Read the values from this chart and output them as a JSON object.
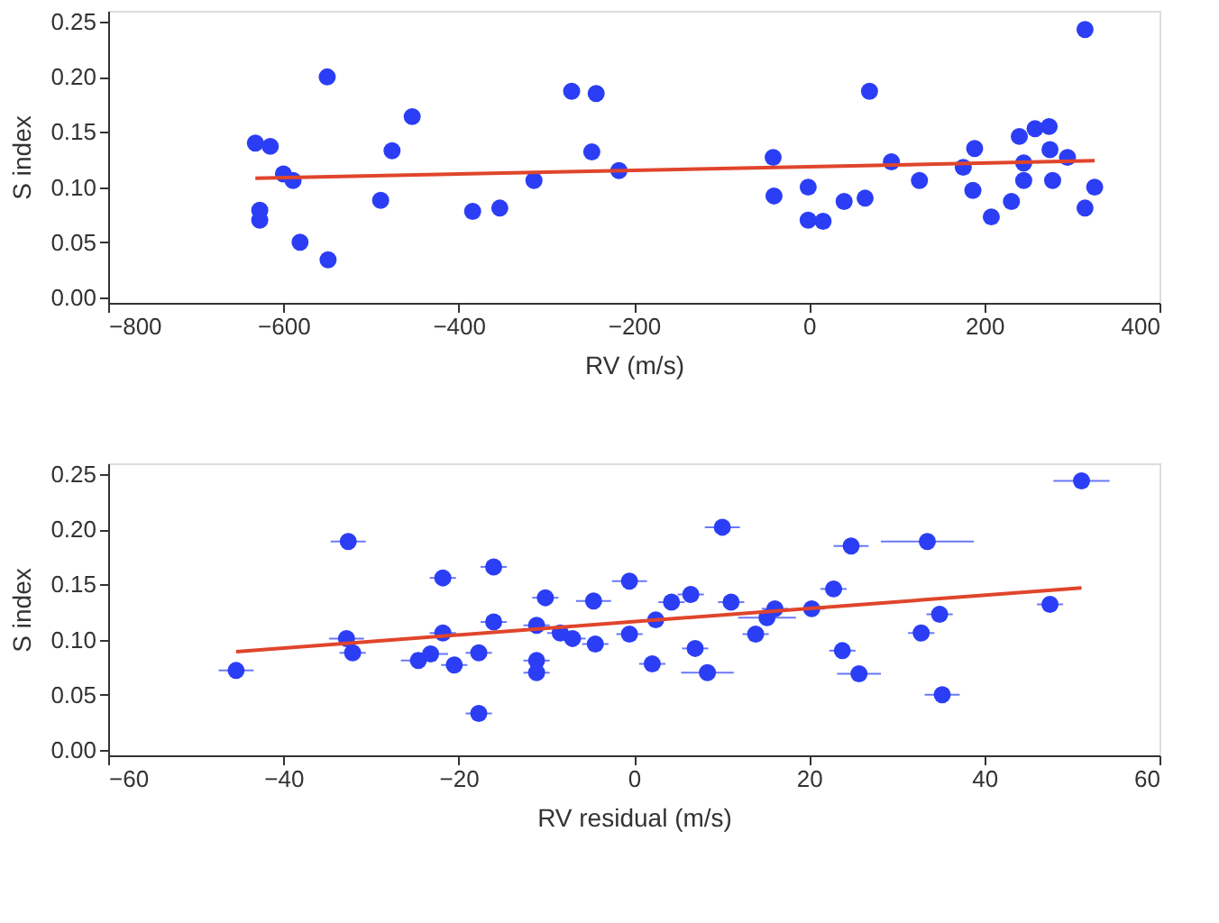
{
  "chart_data": [
    {
      "type": "scatter",
      "xlabel": "RV (m/s)",
      "ylabel": "S index",
      "xlim": [
        -800,
        400
      ],
      "ylim": [
        -0.005,
        0.26
      ],
      "xticks": [
        -800,
        -600,
        -400,
        -200,
        0,
        200,
        400
      ],
      "yticks": [
        {
          "value": 0,
          "label": "0.00"
        },
        0.05,
        {
          "value": 0.1,
          "label": "0.10"
        },
        0.15,
        {
          "value": 0.2,
          "label": "0.20"
        },
        0.25
      ],
      "grid": false,
      "series": [
        {
          "marker": "circle",
          "color": "#2b3ef5",
          "x": [
            -632,
            -615,
            -627,
            -627,
            -600,
            -589,
            -581,
            -550,
            -549,
            -489,
            -476,
            -453,
            -384,
            -353,
            -314,
            -271,
            -243,
            -248,
            -217,
            -41,
            -40,
            -1,
            -1,
            16,
            40,
            64,
            69,
            94,
            126,
            176,
            189,
            187,
            208,
            231,
            240,
            245,
            245,
            258,
            274,
            275,
            278,
            295,
            315,
            315,
            326
          ],
          "values": [
            0.14,
            0.137,
            0.079,
            0.07,
            0.112,
            0.106,
            0.05,
            0.2,
            0.034,
            0.088,
            0.133,
            0.164,
            0.078,
            0.081,
            0.106,
            0.187,
            0.185,
            0.132,
            0.115,
            0.127,
            0.092,
            0.1,
            0.07,
            0.069,
            0.087,
            0.09,
            0.187,
            0.123,
            0.106,
            0.118,
            0.135,
            0.097,
            0.073,
            0.087,
            0.146,
            0.122,
            0.106,
            0.153,
            0.155,
            0.134,
            0.106,
            0.127,
            0.243,
            0.081,
            0.1
          ]
        },
        {
          "type": "line",
          "color": "#e0452c",
          "x": [
            -632,
            326
          ],
          "values": [
            0.108,
            0.124
          ]
        }
      ]
    },
    {
      "type": "scatter",
      "xlabel": "RV residual (m/s)",
      "ylabel": "S index",
      "xlim": [
        -60,
        60
      ],
      "ylim": [
        -0.005,
        0.26
      ],
      "xticks": [
        -60,
        -40,
        -20,
        0,
        20,
        40,
        60
      ],
      "yticks": [
        {
          "value": 0,
          "label": "0.00"
        },
        0.05,
        {
          "value": 0.1,
          "label": "0.10"
        },
        0.15,
        {
          "value": 0.2,
          "label": "0.20"
        },
        0.25
      ],
      "grid": false,
      "series": [
        {
          "marker": "circle",
          "color": "#2b3ef5",
          "x": [
            -45.4,
            -32.6,
            -32.8,
            -32.1,
            -24.6,
            -23.2,
            -21.8,
            -21.8,
            -20.5,
            -17.7,
            -17.7,
            -16.0,
            -16.0,
            -11.1,
            -11.1,
            -11.1,
            -10.1,
            -8.4,
            -7.0,
            -4.6,
            -4.4,
            -0.5,
            -0.5,
            2.1,
            2.5,
            4.3,
            6.5,
            7.0,
            8.4,
            10.1,
            11.1,
            13.9,
            15.2,
            16.1,
            20.3,
            22.8,
            23.8,
            24.8,
            25.7,
            32.8,
            33.5,
            34.9,
            35.2,
            47.5,
            51.1
          ],
          "values": [
            0.072,
            0.189,
            0.101,
            0.088,
            0.081,
            0.087,
            0.156,
            0.106,
            0.077,
            0.088,
            0.033,
            0.166,
            0.116,
            0.113,
            0.081,
            0.07,
            0.138,
            0.106,
            0.101,
            0.135,
            0.096,
            0.153,
            0.105,
            0.078,
            0.118,
            0.134,
            0.141,
            0.092,
            0.07,
            0.202,
            0.134,
            0.105,
            0.12,
            0.128,
            0.128,
            0.146,
            0.09,
            0.185,
            0.069,
            0.106,
            0.189,
            0.123,
            0.05,
            0.132,
            0.244
          ],
          "xerrors": [
            2,
            2,
            2,
            1.5,
            2,
            2,
            1.5,
            1.5,
            1.5,
            1.5,
            1.5,
            1.5,
            1.5,
            1.5,
            1.5,
            1.5,
            1.5,
            1.5,
            1.5,
            2,
            1.5,
            2,
            1.5,
            1.5,
            null,
            1.5,
            1.5,
            1.5,
            3,
            2,
            1.5,
            1.5,
            3.3,
            1.5,
            1.5,
            1.5,
            1.5,
            2,
            2.5,
            1.5,
            5.3,
            1.5,
            2,
            1.5,
            3.2
          ]
        },
        {
          "type": "line",
          "color": "#e0452c",
          "x": [
            -45.4,
            51.1
          ],
          "values": [
            0.089,
            0.147
          ]
        }
      ]
    }
  ]
}
